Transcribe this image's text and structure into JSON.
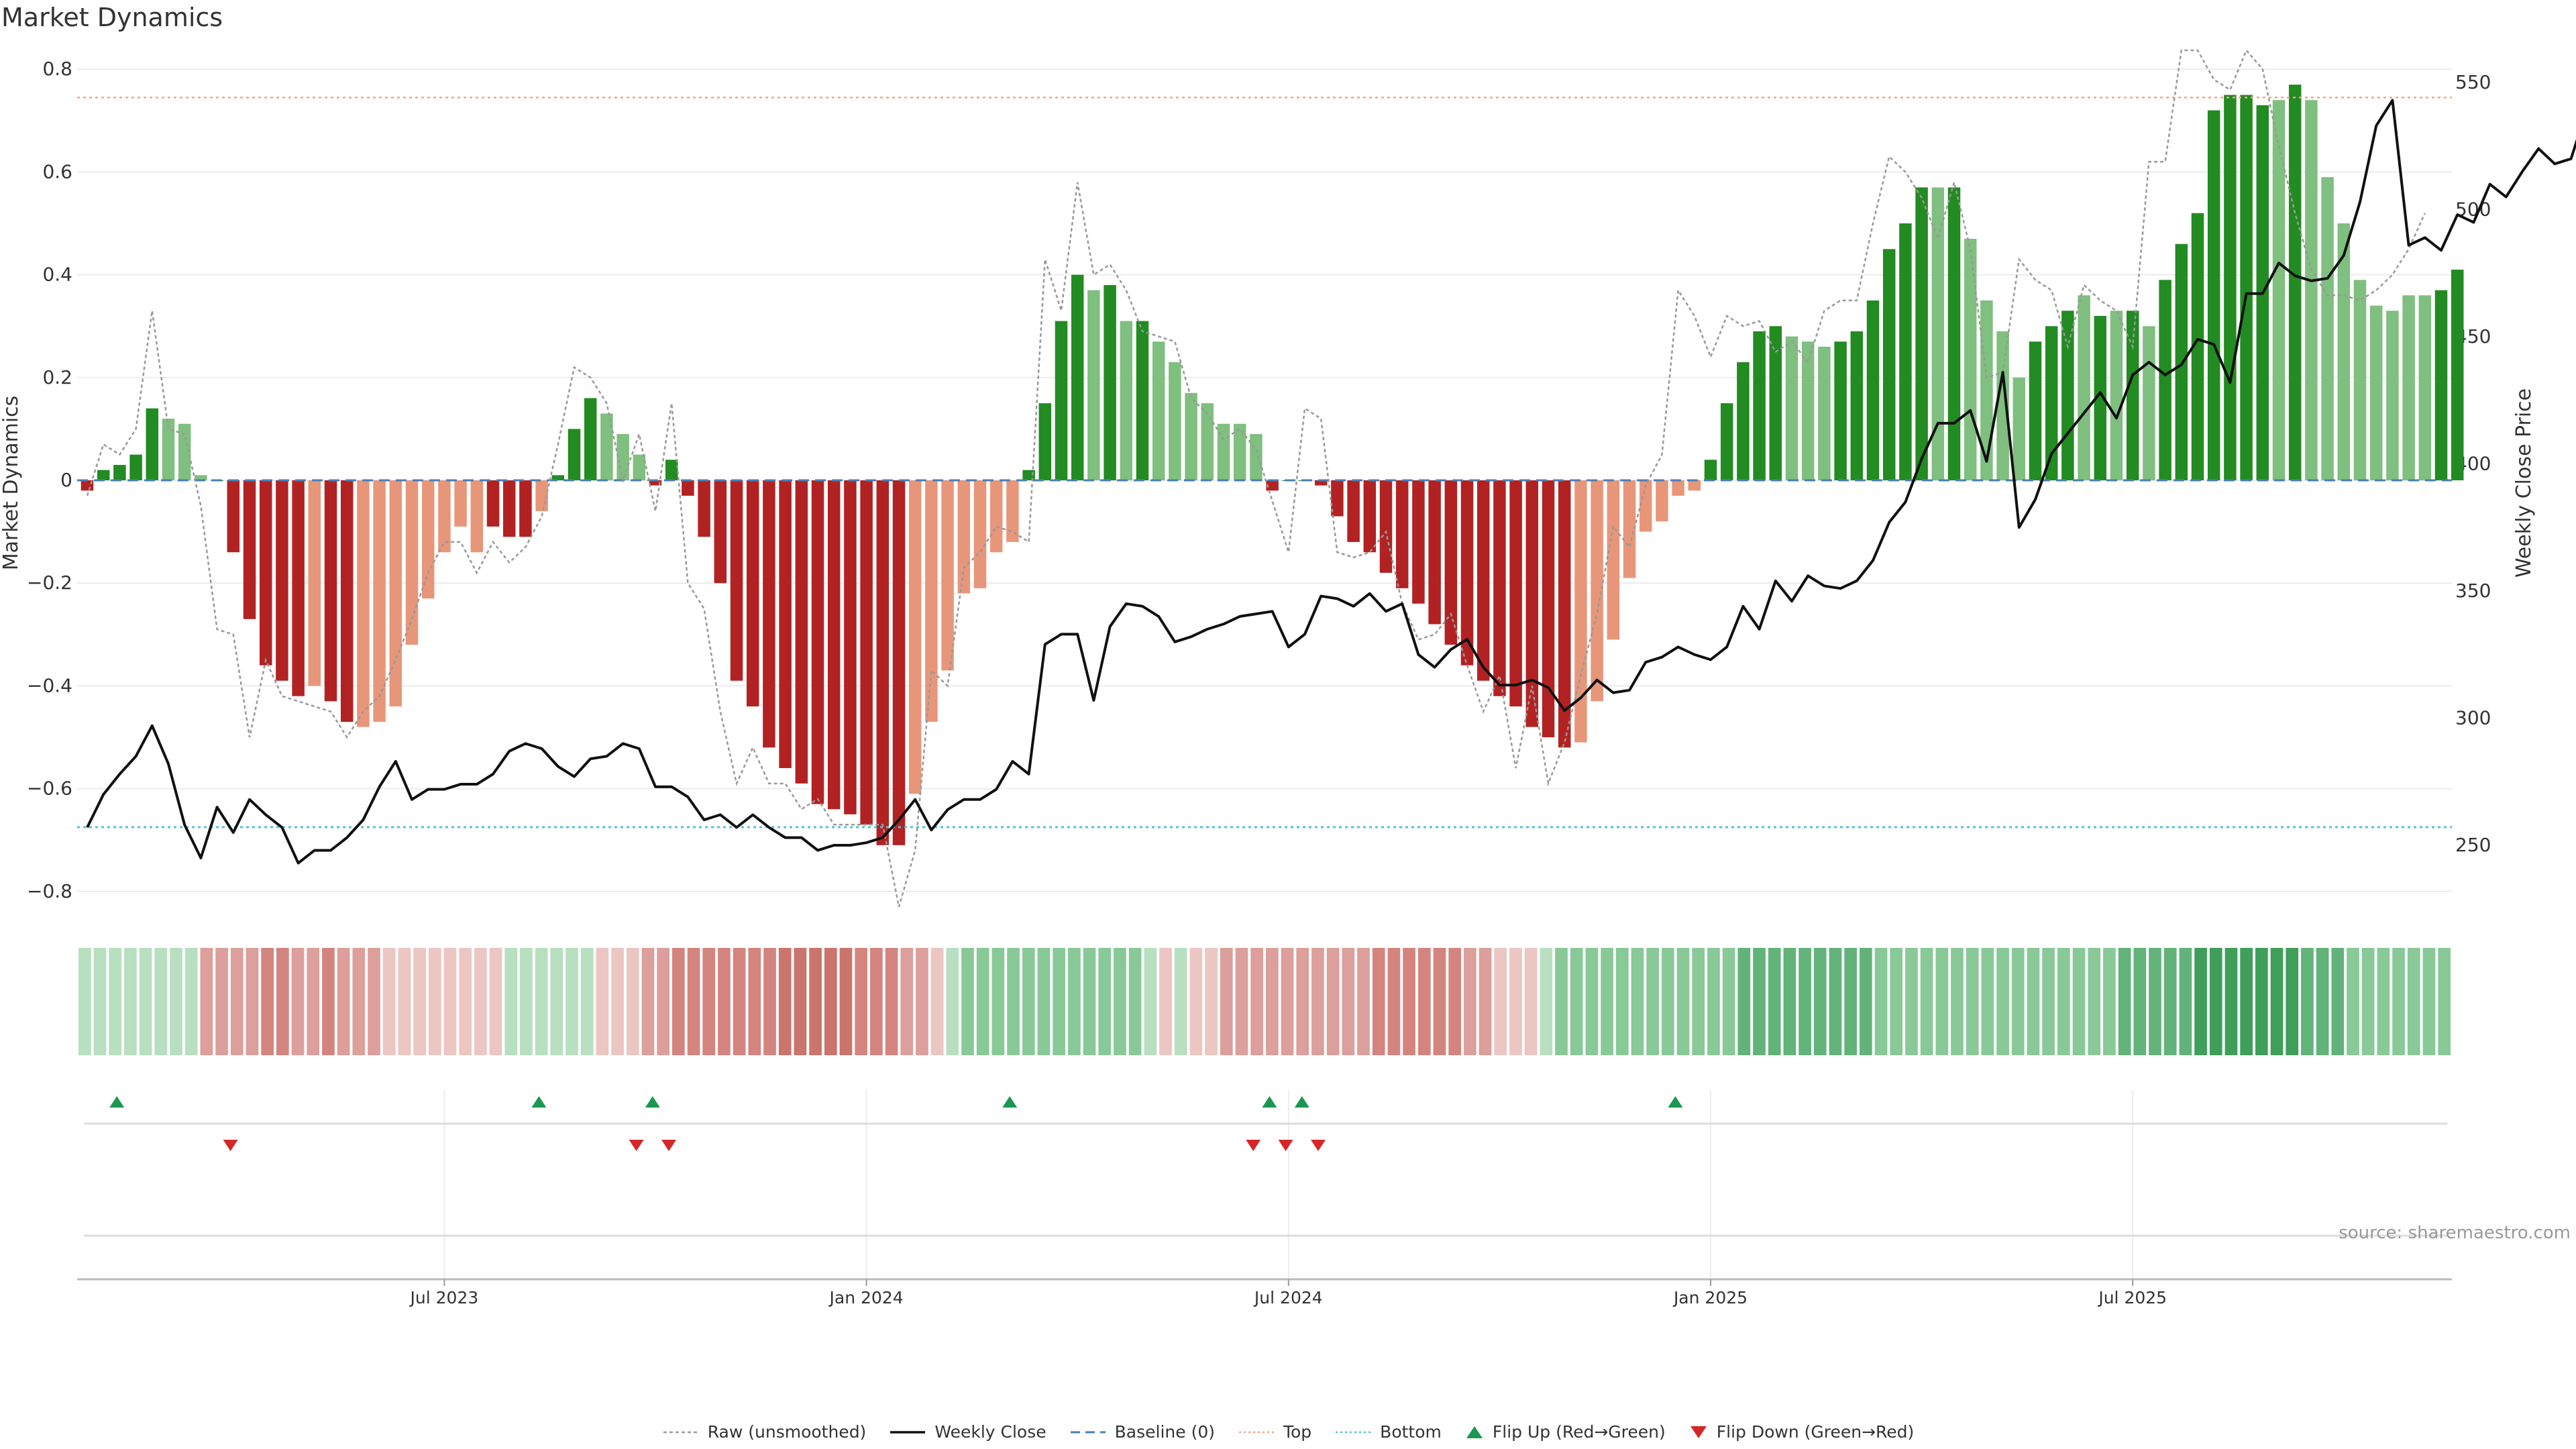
{
  "chart_data": {
    "type": "bar",
    "title": "Market Dynamics",
    "ylabel_left": "Market Dynamics",
    "ylabel_right": "Weekly Close Price",
    "ylim_left": [
      -0.85,
      0.82
    ],
    "ylim_right": [
      220,
      565
    ],
    "left_ticks": [
      "0.8",
      "0.6",
      "0.4",
      "0.2",
      "0",
      "−0.2",
      "−0.4",
      "−0.6",
      "−0.8"
    ],
    "left_tick_values": [
      0.8,
      0.6,
      0.4,
      0.2,
      0,
      -0.2,
      -0.4,
      -0.6,
      -0.8
    ],
    "right_ticks": [
      "550",
      "500",
      "450",
      "400",
      "350",
      "300",
      "250"
    ],
    "right_tick_values": [
      550,
      500,
      450,
      400,
      350,
      300,
      250
    ],
    "x_ticks": [
      "Jul 2023",
      "Jan 2024",
      "Jul 2024",
      "Jan 2025",
      "Jul 2025"
    ],
    "x_tick_weeks": [
      22,
      48,
      74,
      100,
      126
    ],
    "top_level": 0.745,
    "bottom_level": -0.675,
    "momentum": [
      -0.02,
      0.02,
      0.03,
      0.05,
      0.14,
      0.12,
      0.11,
      0.01,
      0.0,
      -0.14,
      -0.27,
      -0.36,
      -0.39,
      -0.42,
      -0.4,
      -0.43,
      -0.47,
      -0.48,
      -0.47,
      -0.44,
      -0.32,
      -0.23,
      -0.14,
      -0.09,
      -0.14,
      -0.09,
      -0.11,
      -0.11,
      -0.06,
      0.01,
      0.1,
      0.16,
      0.13,
      0.09,
      0.05,
      -0.01,
      0.04,
      -0.03,
      -0.11,
      -0.2,
      -0.39,
      -0.44,
      -0.52,
      -0.56,
      -0.59,
      -0.63,
      -0.64,
      -0.65,
      -0.67,
      -0.71,
      -0.71,
      -0.61,
      -0.47,
      -0.37,
      -0.22,
      -0.21,
      -0.14,
      -0.12,
      0.02,
      0.15,
      0.31,
      0.4,
      0.37,
      0.38,
      0.31,
      0.31,
      0.27,
      0.23,
      0.17,
      0.15,
      0.11,
      0.11,
      0.09,
      -0.02,
      0.0,
      0.0,
      -0.01,
      -0.07,
      -0.12,
      -0.14,
      -0.18,
      -0.21,
      -0.24,
      -0.28,
      -0.32,
      -0.36,
      -0.39,
      -0.42,
      -0.44,
      -0.48,
      -0.5,
      -0.52,
      -0.51,
      -0.43,
      -0.31,
      -0.19,
      -0.1,
      -0.08,
      -0.03,
      -0.02,
      0.04,
      0.15,
      0.23,
      0.29,
      0.3,
      0.28,
      0.27,
      0.26,
      0.27,
      0.29,
      0.35,
      0.45,
      0.5,
      0.57,
      0.57,
      0.57,
      0.47,
      0.35,
      0.29,
      0.2,
      0.27,
      0.3,
      0.33,
      0.36,
      0.32,
      0.33,
      0.33,
      0.3,
      0.39,
      0.46,
      0.52,
      0.72,
      0.75,
      0.75,
      0.73,
      0.74,
      0.77,
      0.74,
      0.59,
      0.5,
      0.39,
      0.34,
      0.33,
      0.36,
      0.36,
      0.37,
      0.41
    ],
    "momentum_smoothed_flag_light": [
      false,
      false,
      false,
      false,
      false,
      true,
      true,
      true,
      false,
      false,
      false,
      false,
      false,
      false,
      true,
      false,
      false,
      true,
      true,
      true,
      true,
      true,
      true,
      true,
      true,
      false,
      false,
      false,
      true,
      false,
      false,
      false,
      true,
      true,
      true,
      false,
      false,
      false,
      false,
      false,
      false,
      false,
      false,
      false,
      false,
      false,
      false,
      false,
      false,
      false,
      false,
      true,
      true,
      true,
      true,
      true,
      true,
      true,
      false,
      false,
      false,
      false,
      true,
      false,
      true,
      false,
      true,
      true,
      true,
      true,
      true,
      true,
      true,
      false,
      false,
      false,
      false,
      false,
      false,
      false,
      false,
      false,
      false,
      false,
      false,
      false,
      false,
      false,
      false,
      false,
      false,
      false,
      true,
      true,
      true,
      true,
      true,
      true,
      true,
      true,
      false,
      false,
      false,
      false,
      false,
      true,
      true,
      true,
      false,
      false,
      false,
      false,
      false,
      false,
      true,
      false,
      true,
      true,
      true,
      true,
      false,
      false,
      false,
      true,
      false,
      true,
      false,
      true,
      false,
      false,
      false,
      false,
      false,
      false,
      false,
      true,
      false,
      true,
      true,
      true,
      true,
      true,
      true,
      true,
      true,
      false,
      false
    ],
    "raw": [
      -0.03,
      0.07,
      0.05,
      0.1,
      0.33,
      0.1,
      0.09,
      -0.05,
      -0.29,
      -0.3,
      -0.5,
      -0.35,
      -0.42,
      -0.43,
      -0.44,
      -0.45,
      -0.5,
      -0.45,
      -0.42,
      -0.35,
      -0.27,
      -0.18,
      -0.12,
      -0.12,
      -0.18,
      -0.12,
      -0.16,
      -0.13,
      -0.07,
      0.07,
      0.22,
      0.2,
      0.15,
      0.0,
      0.09,
      -0.06,
      0.15,
      -0.2,
      -0.25,
      -0.45,
      -0.59,
      -0.52,
      -0.59,
      -0.59,
      -0.64,
      -0.62,
      -0.67,
      -0.67,
      -0.67,
      -0.67,
      -0.83,
      -0.72,
      -0.37,
      -0.4,
      -0.17,
      -0.14,
      -0.09,
      -0.1,
      -0.12,
      0.43,
      0.33,
      0.58,
      0.4,
      0.42,
      0.37,
      0.29,
      0.28,
      0.27,
      0.16,
      0.13,
      0.08,
      0.1,
      0.06,
      -0.04,
      -0.14,
      0.14,
      0.12,
      -0.14,
      -0.15,
      -0.14,
      -0.1,
      -0.24,
      -0.31,
      -0.3,
      -0.26,
      -0.36,
      -0.45,
      -0.38,
      -0.56,
      -0.4,
      -0.59,
      -0.51,
      -0.38,
      -0.26,
      -0.09,
      -0.13,
      -0.01,
      0.05,
      0.37,
      0.32,
      0.24,
      0.32,
      0.3,
      0.31,
      0.25,
      0.27,
      0.23,
      0.33,
      0.35,
      0.35,
      0.5,
      0.63,
      0.6,
      0.55,
      0.47,
      0.58,
      0.45,
      0.2,
      0.21,
      0.43,
      0.39,
      0.37,
      0.26,
      0.38,
      0.35,
      0.33,
      0.26,
      0.62,
      0.62,
      0.84,
      0.84,
      0.78,
      0.76,
      0.85,
      0.8,
      0.65,
      0.52,
      0.41,
      0.36,
      0.36,
      0.35,
      0.37,
      0.4,
      0.45,
      0.52
    ],
    "close": [
      257,
      270,
      278,
      285,
      297,
      282,
      258,
      245,
      265,
      255,
      268,
      262,
      257,
      243,
      248,
      248,
      253,
      260,
      273,
      283,
      268,
      272,
      272,
      274,
      274,
      278,
      287,
      290,
      288,
      281,
      277,
      284,
      285,
      290,
      288,
      273,
      273,
      269,
      260,
      262,
      257,
      262,
      257,
      253,
      253,
      248,
      250,
      250,
      251,
      253,
      260,
      268,
      256,
      264,
      268,
      268,
      272,
      283,
      278,
      329,
      333,
      333,
      307,
      336,
      345,
      344,
      340,
      330,
      332,
      335,
      337,
      340,
      341,
      342,
      328,
      333,
      348,
      347,
      344,
      349,
      342,
      345,
      325,
      320,
      327,
      331,
      320,
      313,
      313,
      315,
      312,
      303,
      308,
      315,
      310,
      311,
      322,
      324,
      328,
      325,
      323,
      328,
      344,
      335,
      354,
      346,
      356,
      352,
      351,
      354,
      362,
      377,
      385,
      402,
      416,
      416,
      421,
      401,
      436,
      375,
      386,
      404,
      412,
      420,
      428,
      418,
      435,
      440,
      435,
      439,
      449,
      447,
      432,
      467,
      467,
      479,
      474,
      472,
      473,
      482,
      503,
      533,
      543,
      486,
      489,
      484,
      498,
      495,
      510,
      505,
      515,
      524,
      518,
      520,
      540
    ]
  },
  "strip_pattern": [
    1,
    1,
    1,
    1,
    1,
    1,
    1,
    1,
    -2,
    -2,
    -2,
    -2,
    -3,
    -3,
    -2,
    -2,
    -3,
    -2,
    -2,
    -2,
    -1,
    -1,
    -1,
    -1,
    -1,
    -1,
    -1,
    -1,
    1,
    1,
    1,
    1,
    1,
    1,
    -1,
    -1,
    -1,
    -2,
    -2,
    -3,
    -3,
    -3,
    -3,
    -3,
    -3,
    -3,
    -4,
    -4,
    -4,
    -4,
    -4,
    -3,
    -3,
    -3,
    -2,
    -2,
    -1,
    1,
    2,
    2,
    2,
    2,
    2,
    2,
    2,
    2,
    2,
    2,
    2,
    2,
    1,
    -1,
    1,
    -1,
    -1,
    -2,
    -2,
    -2,
    -2,
    -2,
    -2,
    -2,
    -2,
    -2,
    -2,
    -3,
    -3,
    -3,
    -3,
    -3,
    -3,
    -2,
    -2,
    -1,
    -1,
    -1,
    1,
    2,
    2,
    2,
    2,
    2,
    2,
    2,
    2,
    2,
    2,
    2,
    2,
    3,
    3,
    3,
    3,
    3,
    3,
    3,
    3,
    3,
    2,
    2,
    2,
    2,
    2,
    2,
    2,
    2,
    2,
    2,
    2,
    2,
    2,
    2,
    2,
    2,
    3,
    3,
    3,
    3,
    3,
    4,
    4,
    4,
    4,
    4,
    4,
    4,
    3,
    3,
    3,
    2,
    2,
    2,
    2,
    2,
    2,
    2
  ],
  "flips": {
    "up_weeks": [
      1,
      27,
      34,
      56,
      72,
      74,
      97
    ],
    "down_weeks": [
      8,
      33,
      35,
      71,
      73,
      75
    ]
  },
  "legend": {
    "raw": "Raw (unsmoothed)",
    "close": "Weekly Close",
    "baseline": "Baseline (0)",
    "top": "Top",
    "bottom": "Bottom",
    "flip_up": "Flip Up (Red→Green)",
    "flip_down": "Flip Down (Green→Red)"
  },
  "source": "source: sharemaestro.com",
  "colors": {
    "green_dark": "#228b22",
    "green_light": "#7fbf7f",
    "red_dark": "#b22222",
    "red_light": "#e8967a",
    "raw_line": "#999999",
    "close_line": "#111111",
    "baseline": "#4a7fb5",
    "top_line": "#f4a582",
    "bottom_line": "#4fc3d9",
    "flip_up": "#1a9850",
    "flip_down": "#d62728"
  }
}
